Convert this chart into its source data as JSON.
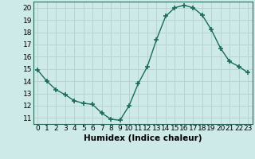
{
  "x": [
    0,
    1,
    2,
    3,
    4,
    5,
    6,
    7,
    8,
    9,
    10,
    11,
    12,
    13,
    14,
    15,
    16,
    17,
    18,
    19,
    20,
    21,
    22,
    23
  ],
  "y": [
    14.9,
    14.0,
    13.3,
    12.9,
    12.4,
    12.2,
    12.1,
    11.4,
    10.9,
    10.8,
    12.0,
    13.8,
    15.2,
    17.4,
    19.3,
    20.0,
    20.2,
    20.0,
    19.4,
    18.2,
    16.7,
    15.6,
    15.2,
    14.7
  ],
  "line_color": "#1a6b5a",
  "marker": "+",
  "marker_size": 4,
  "bg_color": "#ceeae8",
  "grid_color": "#b8d4d2",
  "axis_label": "Humidex (Indice chaleur)",
  "xlim": [
    -0.5,
    23.5
  ],
  "ylim": [
    10.5,
    20.5
  ],
  "yticks": [
    11,
    12,
    13,
    14,
    15,
    16,
    17,
    18,
    19,
    20
  ],
  "xticks": [
    0,
    1,
    2,
    3,
    4,
    5,
    6,
    7,
    8,
    9,
    10,
    11,
    12,
    13,
    14,
    15,
    16,
    17,
    18,
    19,
    20,
    21,
    22,
    23
  ],
  "tick_label_fontsize": 6.5,
  "axis_label_fontsize": 7.5
}
